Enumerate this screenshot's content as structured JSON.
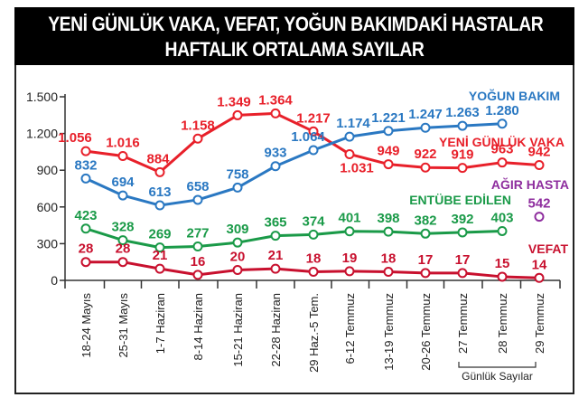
{
  "header": {
    "title_line1": "YENİ GÜNLÜK VAKA, VEFAT, YOĞUN BAKIMDAKİ HASTALAR",
    "title_line2": "HAFTALIK ORTALAMA  SAYILAR"
  },
  "footnote": "Günlük Sayılar",
  "colors": {
    "yeni_gunluk_vaka": "#e8202a",
    "yogun_bakim": "#2a78c2",
    "entube_edilen": "#1a9a48",
    "vefat": "#c8102e",
    "agir_hasta": "#8e2d9e",
    "title_bg": "#000000",
    "title_fg": "#ffffff"
  },
  "chart_data": {
    "type": "line",
    "title": "YENİ GÜNLÜK VAKA, VEFAT, YOĞUN BAKIMDAKİ HASTALAR HAFTALIK ORTALAMA SAYILAR",
    "xlabel": "",
    "ylabel": "",
    "ylim": [
      0,
      1500
    ],
    "yticks": [
      0,
      300,
      600,
      900,
      1200,
      1500
    ],
    "ytick_labels": [
      "0",
      "300",
      "600",
      "900",
      "1.200",
      "1.500"
    ],
    "grid": false,
    "categories": [
      "18-24 Mayıs",
      "25-31 Mayıs",
      "1-7 Haziran",
      "8-14 Haziran",
      "15-21 Haziran",
      "22-28 Haziran",
      "29 Haz.-5 Tem.",
      "6-12 Temmuz",
      "13-19 Temmuz",
      "20-26 Temmuz",
      "27 Temmuz",
      "28 Temmuz",
      "29 Temmuz"
    ],
    "series": [
      {
        "name": "YENİ GÜNLÜK VAKA",
        "color": "#e8202a",
        "values": [
          1056,
          1016,
          884,
          1158,
          1349,
          1364,
          1217,
          1031,
          949,
          922,
          919,
          963,
          942
        ],
        "labels": [
          "1.056",
          "1.016",
          "884",
          "1.158",
          "1.349",
          "1.364",
          "1.217",
          "1.031",
          "949",
          "922",
          "919",
          "963",
          "942"
        ]
      },
      {
        "name": "YOĞUN BAKIM",
        "color": "#2a78c2",
        "values": [
          832,
          694,
          613,
          658,
          758,
          933,
          1064,
          1174,
          1221,
          1247,
          1263,
          1280,
          null
        ],
        "labels": [
          "832",
          "694",
          "613",
          "658",
          "758",
          "933",
          "1.064",
          "1.174",
          "1.221",
          "1.247",
          "1.263",
          "1.280",
          ""
        ]
      },
      {
        "name": "ENTÜBE EDİLEN",
        "color": "#1a9a48",
        "values": [
          423,
          328,
          269,
          277,
          309,
          365,
          374,
          401,
          398,
          382,
          392,
          403,
          null
        ],
        "labels": [
          "423",
          "328",
          "269",
          "277",
          "309",
          "365",
          "374",
          "401",
          "398",
          "382",
          "392",
          "403",
          ""
        ]
      },
      {
        "name": "VEFAT",
        "color": "#c8102e",
        "values": [
          28,
          28,
          21,
          16,
          20,
          21,
          18,
          19,
          18,
          17,
          17,
          15,
          14
        ],
        "labels": [
          "28",
          "28",
          "21",
          "16",
          "20",
          "21",
          "18",
          "19",
          "18",
          "17",
          "17",
          "15",
          "14"
        ],
        "plotted_y": [
          150,
          150,
          95,
          45,
          85,
          95,
          70,
          75,
          70,
          60,
          60,
          30,
          20
        ]
      },
      {
        "name": "AĞIR HASTA",
        "color": "#8e2d9e",
        "values": [
          null,
          null,
          null,
          null,
          null,
          null,
          null,
          null,
          null,
          null,
          null,
          null,
          542
        ],
        "labels": [
          "",
          "",
          "",
          "",
          "",
          "",
          "",
          "",
          "",
          "",
          "",
          "",
          "542"
        ]
      }
    ],
    "annotations": [
      {
        "text": "Günlük Sayılar",
        "applies_to": [
          "27 Temmuz",
          "28 Temmuz",
          "29 Temmuz"
        ]
      }
    ]
  }
}
